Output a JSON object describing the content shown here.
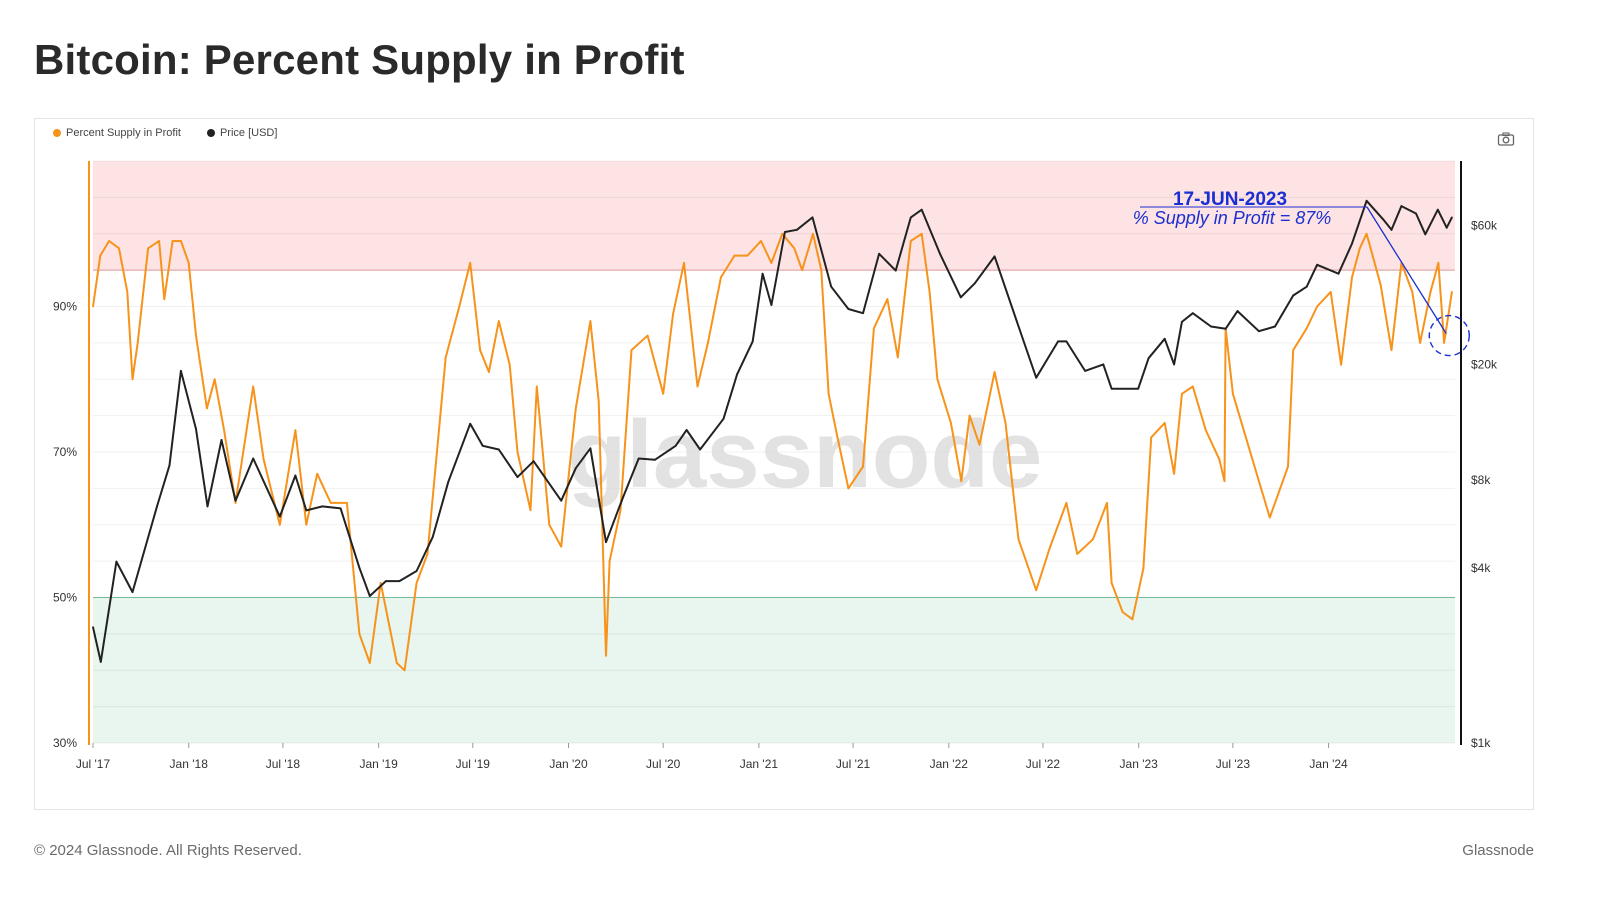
{
  "page": {
    "title": "Bitcoin: Percent Supply in Profit",
    "footer_copyright": "© 2024 Glassnode. All Rights Reserved.",
    "footer_brand": "Glassnode"
  },
  "chart_toolbar": {
    "camera_icon": "camera-icon"
  },
  "colors": {
    "supply": "#f7931a",
    "price": "#222222",
    "red_band": "#fde3e3",
    "red_line": "#e8a3a3",
    "green_band": "#e8f6ef",
    "green_line": "#7fc6a4",
    "annotation": "#1a2fd1"
  },
  "chart_data": {
    "type": "line",
    "title": "Bitcoin: Percent Supply in Profit",
    "legend_placement": "top-left",
    "grid": true,
    "x_ticks": [
      "Jul '17",
      "Jan '18",
      "Jul '18",
      "Jan '19",
      "Jul '19",
      "Jan '20",
      "Jul '20",
      "Jan '21",
      "Jul '21",
      "Jan '22",
      "Jul '22",
      "Jan '23",
      "Jul '23",
      "Jan '24"
    ],
    "xlim": [
      "2017-07-01",
      "2024-08-31"
    ],
    "y_left": {
      "ticks": [
        "30%",
        "50%",
        "70%",
        "90%"
      ],
      "tick_values": [
        30,
        50,
        70,
        90
      ],
      "range": [
        30,
        110
      ]
    },
    "y_right": {
      "scale": "log",
      "ticks": [
        "$1k",
        "$4k",
        "$8k",
        "$20k",
        "$60k"
      ],
      "tick_values": [
        1000,
        4000,
        8000,
        20000,
        60000
      ],
      "range": [
        1000,
        100000
      ]
    },
    "bands": [
      {
        "name": "high",
        "from": 95,
        "to": 110,
        "color": "#fde3e3"
      },
      {
        "name": "low",
        "from": 30,
        "to": 50,
        "color": "#e8f6ef"
      }
    ],
    "series": [
      {
        "name": "Percent Supply in Profit",
        "axis": "left",
        "color": "#f7931a",
        "points": [
          [
            "2017-07-01",
            90
          ],
          [
            "2017-07-15",
            97
          ],
          [
            "2017-08-01",
            99
          ],
          [
            "2017-08-20",
            98
          ],
          [
            "2017-09-05",
            92
          ],
          [
            "2017-09-15",
            80
          ],
          [
            "2017-09-25",
            85
          ],
          [
            "2017-10-15",
            98
          ],
          [
            "2017-11-05",
            99
          ],
          [
            "2017-11-15",
            91
          ],
          [
            "2017-12-01",
            99
          ],
          [
            "2017-12-17",
            99
          ],
          [
            "2018-01-01",
            96
          ],
          [
            "2018-01-15",
            86
          ],
          [
            "2018-02-05",
            76
          ],
          [
            "2018-02-20",
            80
          ],
          [
            "2018-03-10",
            73
          ],
          [
            "2018-04-01",
            63
          ],
          [
            "2018-05-05",
            79
          ],
          [
            "2018-05-25",
            69
          ],
          [
            "2018-06-25",
            60
          ],
          [
            "2018-07-25",
            73
          ],
          [
            "2018-08-15",
            60
          ],
          [
            "2018-09-05",
            67
          ],
          [
            "2018-10-01",
            63
          ],
          [
            "2018-11-01",
            63
          ],
          [
            "2018-11-25",
            45
          ],
          [
            "2018-12-15",
            41
          ],
          [
            "2019-01-05",
            52
          ],
          [
            "2019-02-05",
            41
          ],
          [
            "2019-02-20",
            40
          ],
          [
            "2019-03-15",
            52
          ],
          [
            "2019-04-05",
            56
          ],
          [
            "2019-05-10",
            83
          ],
          [
            "2019-06-05",
            90
          ],
          [
            "2019-06-26",
            96
          ],
          [
            "2019-07-15",
            84
          ],
          [
            "2019-08-01",
            81
          ],
          [
            "2019-08-20",
            88
          ],
          [
            "2019-09-10",
            82
          ],
          [
            "2019-09-25",
            70
          ],
          [
            "2019-10-20",
            62
          ],
          [
            "2019-11-01",
            79
          ],
          [
            "2019-11-25",
            60
          ],
          [
            "2019-12-18",
            57
          ],
          [
            "2020-01-15",
            76
          ],
          [
            "2020-02-12",
            88
          ],
          [
            "2020-02-28",
            77
          ],
          [
            "2020-03-13",
            42
          ],
          [
            "2020-03-20",
            55
          ],
          [
            "2020-04-10",
            62
          ],
          [
            "2020-05-01",
            84
          ],
          [
            "2020-06-01",
            86
          ],
          [
            "2020-07-01",
            78
          ],
          [
            "2020-07-20",
            89
          ],
          [
            "2020-08-10",
            96
          ],
          [
            "2020-09-05",
            79
          ],
          [
            "2020-09-25",
            85
          ],
          [
            "2020-10-20",
            94
          ],
          [
            "2020-11-15",
            97
          ],
          [
            "2020-12-10",
            97
          ],
          [
            "2021-01-05",
            99
          ],
          [
            "2021-01-25",
            96
          ],
          [
            "2021-02-15",
            100
          ],
          [
            "2021-03-10",
            98
          ],
          [
            "2021-03-25",
            95
          ],
          [
            "2021-04-15",
            100
          ],
          [
            "2021-05-01",
            95
          ],
          [
            "2021-05-15",
            78
          ],
          [
            "2021-06-01",
            72
          ],
          [
            "2021-06-22",
            65
          ],
          [
            "2021-07-20",
            68
          ],
          [
            "2021-08-10",
            87
          ],
          [
            "2021-09-05",
            91
          ],
          [
            "2021-09-25",
            83
          ],
          [
            "2021-10-20",
            99
          ],
          [
            "2021-11-10",
            100
          ],
          [
            "2021-11-25",
            92
          ],
          [
            "2021-12-10",
            80
          ],
          [
            "2022-01-05",
            74
          ],
          [
            "2022-01-25",
            66
          ],
          [
            "2022-02-10",
            75
          ],
          [
            "2022-03-01",
            71
          ],
          [
            "2022-03-30",
            81
          ],
          [
            "2022-04-20",
            74
          ],
          [
            "2022-05-15",
            58
          ],
          [
            "2022-06-18",
            51
          ],
          [
            "2022-07-15",
            57
          ],
          [
            "2022-08-15",
            63
          ],
          [
            "2022-09-05",
            56
          ],
          [
            "2022-10-05",
            58
          ],
          [
            "2022-11-01",
            63
          ],
          [
            "2022-11-10",
            52
          ],
          [
            "2022-12-01",
            48
          ],
          [
            "2022-12-20",
            47
          ],
          [
            "2023-01-10",
            54
          ],
          [
            "2023-01-25",
            72
          ],
          [
            "2023-02-20",
            74
          ],
          [
            "2023-03-10",
            67
          ],
          [
            "2023-03-25",
            78
          ],
          [
            "2023-04-15",
            79
          ],
          [
            "2023-05-10",
            73
          ],
          [
            "2023-06-05",
            69
          ],
          [
            "2023-06-15",
            66
          ],
          [
            "2023-06-17",
            87
          ],
          [
            "2023-07-01",
            78
          ],
          [
            "2023-08-20",
            66
          ],
          [
            "2023-09-10",
            61
          ],
          [
            "2023-10-15",
            68
          ],
          [
            "2023-10-25",
            84
          ],
          [
            "2023-11-20",
            87
          ],
          [
            "2023-12-10",
            90
          ],
          [
            "2024-01-05",
            92
          ],
          [
            "2024-01-25",
            82
          ],
          [
            "2024-02-15",
            94
          ],
          [
            "2024-03-01",
            98
          ],
          [
            "2024-03-14",
            100
          ],
          [
            "2024-04-10",
            93
          ],
          [
            "2024-05-01",
            84
          ],
          [
            "2024-05-20",
            96
          ],
          [
            "2024-06-10",
            92
          ],
          [
            "2024-06-25",
            85
          ],
          [
            "2024-07-15",
            92
          ],
          [
            "2024-07-30",
            96
          ],
          [
            "2024-08-10",
            85
          ],
          [
            "2024-08-25",
            92
          ]
        ]
      },
      {
        "name": "Price [USD]",
        "axis": "right",
        "color": "#222222",
        "points": [
          [
            "2017-07-01",
            2500
          ],
          [
            "2017-07-16",
            1900
          ],
          [
            "2017-08-15",
            4200
          ],
          [
            "2017-09-15",
            3300
          ],
          [
            "2017-11-01",
            6500
          ],
          [
            "2017-11-25",
            9000
          ],
          [
            "2017-12-17",
            19000
          ],
          [
            "2018-01-15",
            12000
          ],
          [
            "2018-02-06",
            6500
          ],
          [
            "2018-03-05",
            11000
          ],
          [
            "2018-04-01",
            6800
          ],
          [
            "2018-05-05",
            9500
          ],
          [
            "2018-06-25",
            6000
          ],
          [
            "2018-07-25",
            8300
          ],
          [
            "2018-08-15",
            6300
          ],
          [
            "2018-09-15",
            6500
          ],
          [
            "2018-10-20",
            6400
          ],
          [
            "2018-11-25",
            4000
          ],
          [
            "2018-12-15",
            3200
          ],
          [
            "2019-01-15",
            3600
          ],
          [
            "2019-02-10",
            3600
          ],
          [
            "2019-03-15",
            3900
          ],
          [
            "2019-04-15",
            5100
          ],
          [
            "2019-05-15",
            7900
          ],
          [
            "2019-06-26",
            12500
          ],
          [
            "2019-07-20",
            10500
          ],
          [
            "2019-08-20",
            10200
          ],
          [
            "2019-09-25",
            8200
          ],
          [
            "2019-10-26",
            9300
          ],
          [
            "2019-12-18",
            6800
          ],
          [
            "2020-01-15",
            8800
          ],
          [
            "2020-02-12",
            10300
          ],
          [
            "2020-03-13",
            4900
          ],
          [
            "2020-04-15",
            7000
          ],
          [
            "2020-05-15",
            9500
          ],
          [
            "2020-06-15",
            9400
          ],
          [
            "2020-07-25",
            10500
          ],
          [
            "2020-08-15",
            11900
          ],
          [
            "2020-09-10",
            10200
          ],
          [
            "2020-10-25",
            13000
          ],
          [
            "2020-11-20",
            18500
          ],
          [
            "2020-12-20",
            24000
          ],
          [
            "2021-01-08",
            41000
          ],
          [
            "2021-01-25",
            32000
          ],
          [
            "2021-02-20",
            57000
          ],
          [
            "2021-03-15",
            58000
          ],
          [
            "2021-04-14",
            64000
          ],
          [
            "2021-05-20",
            37000
          ],
          [
            "2021-06-22",
            31000
          ],
          [
            "2021-07-20",
            30000
          ],
          [
            "2021-08-20",
            48000
          ],
          [
            "2021-09-21",
            42000
          ],
          [
            "2021-10-20",
            64000
          ],
          [
            "2021-11-10",
            68000
          ],
          [
            "2021-12-15",
            48000
          ],
          [
            "2022-01-24",
            34000
          ],
          [
            "2022-02-20",
            38000
          ],
          [
            "2022-03-30",
            47000
          ],
          [
            "2022-05-12",
            28000
          ],
          [
            "2022-06-18",
            18000
          ],
          [
            "2022-07-30",
            24000
          ],
          [
            "2022-08-15",
            24000
          ],
          [
            "2022-09-20",
            19000
          ],
          [
            "2022-10-25",
            20000
          ],
          [
            "2022-11-10",
            16500
          ],
          [
            "2022-12-31",
            16500
          ],
          [
            "2023-01-20",
            21000
          ],
          [
            "2023-02-20",
            24500
          ],
          [
            "2023-03-10",
            20000
          ],
          [
            "2023-03-25",
            28000
          ],
          [
            "2023-04-15",
            30000
          ],
          [
            "2023-05-20",
            27000
          ],
          [
            "2023-06-17",
            26500
          ],
          [
            "2023-07-10",
            30500
          ],
          [
            "2023-08-20",
            26000
          ],
          [
            "2023-09-20",
            27000
          ],
          [
            "2023-10-25",
            34500
          ],
          [
            "2023-11-20",
            37000
          ],
          [
            "2023-12-10",
            44000
          ],
          [
            "2024-01-20",
            41000
          ],
          [
            "2024-02-15",
            52000
          ],
          [
            "2024-03-14",
            73000
          ],
          [
            "2024-04-15",
            63000
          ],
          [
            "2024-05-01",
            58000
          ],
          [
            "2024-05-20",
            70000
          ],
          [
            "2024-06-17",
            66000
          ],
          [
            "2024-07-05",
            56000
          ],
          [
            "2024-07-29",
            68000
          ],
          [
            "2024-08-15",
            59000
          ],
          [
            "2024-08-25",
            64000
          ]
        ]
      }
    ],
    "annotation": {
      "date_label": "17-JUN-2023",
      "text": "% Supply in Profit = 87%",
      "target_date": "2024-08-20",
      "target_value": 86
    },
    "watermark": "glassnode"
  }
}
